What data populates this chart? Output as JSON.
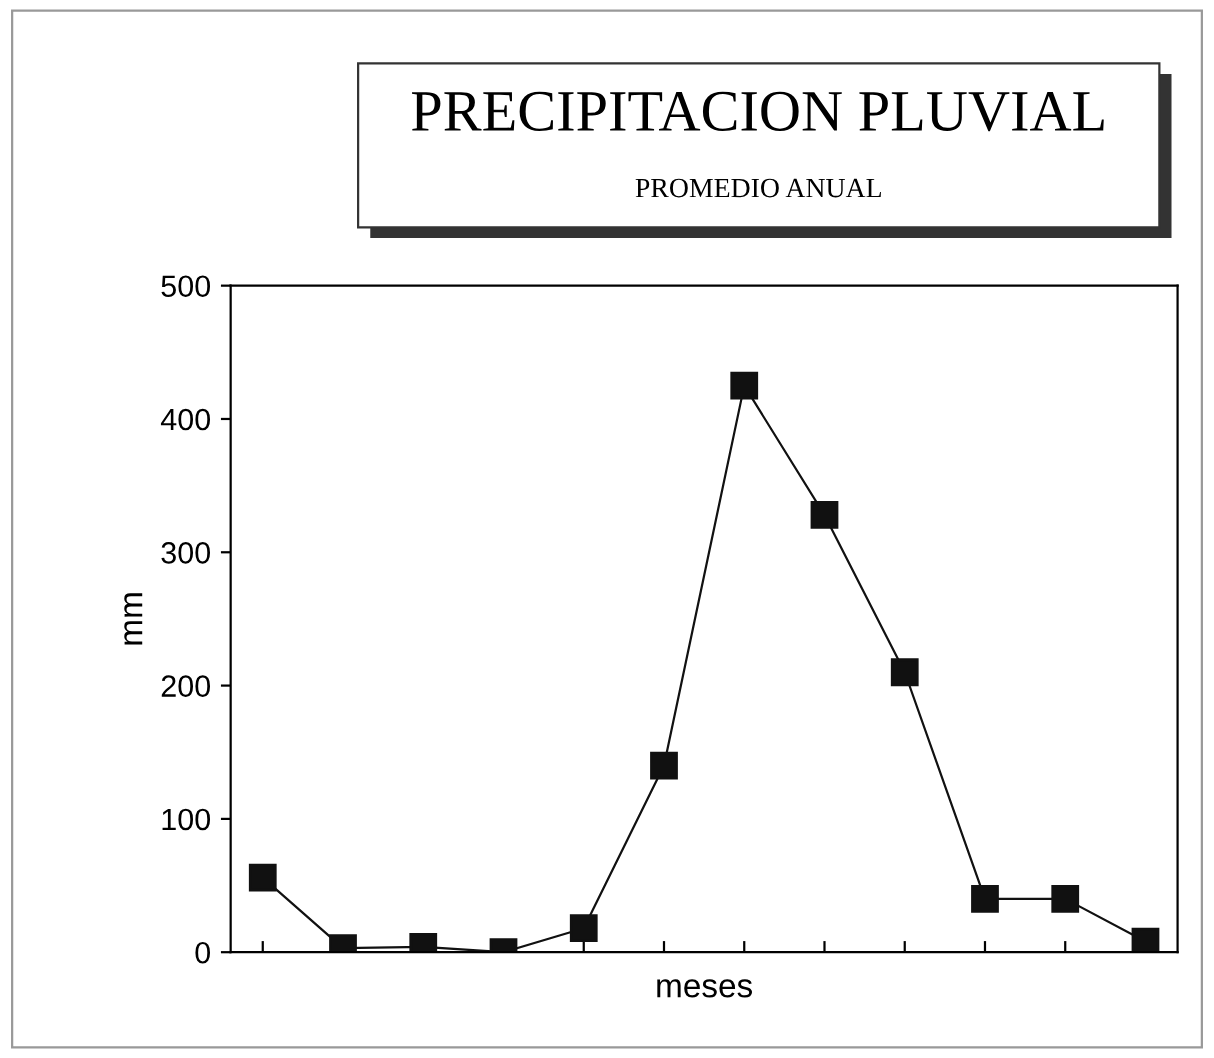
{
  "chart_data": {
    "type": "line",
    "title": "PRECIPITACION PLUVIAL",
    "subtitle": "PROMEDIO ANUAL",
    "xlabel": "meses",
    "ylabel": "mm",
    "categories": [
      null,
      null,
      null,
      null,
      null,
      null,
      null,
      null,
      null,
      null,
      null,
      null
    ],
    "series": [
      {
        "color": "#111111",
        "values": [
          56,
          3,
          4,
          0,
          18,
          140,
          425,
          328,
          210,
          40,
          40,
          8
        ]
      }
    ],
    "ylim": [
      0,
      500
    ],
    "yticks": [
      0,
      100,
      200,
      300,
      400,
      500
    ],
    "marker": "square",
    "line_style": "solid",
    "grid": false,
    "legend": false
  }
}
